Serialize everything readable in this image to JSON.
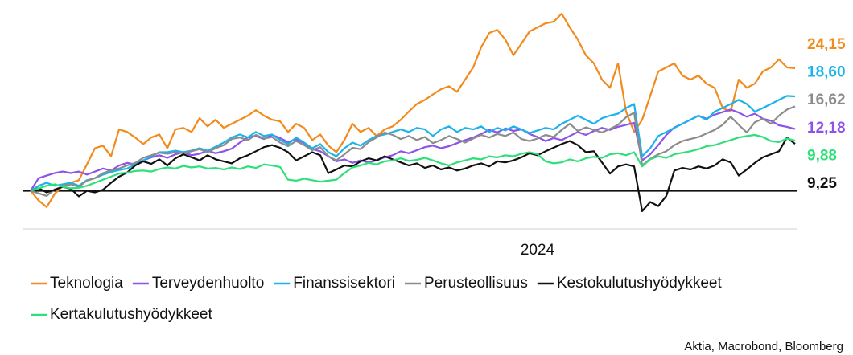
{
  "chart_data": {
    "type": "line",
    "source": "Aktia, Macrobond, Bloomberg",
    "categories": [
      null,
      null,
      null,
      null,
      null,
      null,
      null,
      null,
      null,
      null,
      null,
      null,
      null,
      null,
      null,
      null,
      null,
      null,
      null,
      null,
      null,
      null,
      null,
      null,
      null,
      null,
      null,
      null,
      null,
      null,
      null,
      null,
      null,
      null,
      null,
      null,
      null,
      null,
      null,
      null,
      null,
      null,
      null,
      null,
      null,
      null,
      null,
      null,
      null,
      null,
      null,
      null,
      null,
      null,
      null,
      null,
      null,
      null,
      null,
      null,
      null,
      null,
      null,
      "2024",
      null,
      null,
      null,
      null,
      null,
      null,
      null,
      null,
      null,
      null,
      null,
      null,
      null,
      null,
      null,
      null,
      null,
      null,
      null,
      null,
      null,
      null,
      null,
      null,
      null,
      null,
      null,
      null,
      null,
      null,
      null,
      null
    ],
    "ylim": [
      -7.5,
      36
    ],
    "series": [
      {
        "name": "Teknologia",
        "color": "#f28a1c",
        "value_label": "24,15",
        "values": [
          0,
          -1.9,
          -3.2,
          -0.6,
          1.0,
          1.6,
          2.1,
          5.2,
          8.4,
          8.9,
          6.8,
          12.1,
          11.6,
          10.5,
          9.2,
          10.5,
          11.1,
          8.4,
          12.1,
          12.4,
          11.6,
          14.3,
          12.7,
          14.0,
          12.4,
          13.2,
          14.0,
          14.8,
          15.9,
          14.8,
          14.0,
          13.7,
          11.6,
          13.2,
          12.4,
          10.0,
          11.1,
          8.9,
          7.6,
          10.0,
          13.2,
          11.6,
          12.4,
          10.8,
          12.1,
          12.7,
          14.0,
          15.6,
          17.1,
          17.9,
          19.0,
          20.0,
          20.6,
          19.5,
          21.9,
          24.3,
          28.3,
          31.1,
          31.7,
          29.8,
          26.7,
          29.0,
          31.4,
          32.2,
          33.0,
          33.3,
          34.9,
          32.2,
          29.8,
          26.7,
          25.1,
          21.9,
          20.3,
          25.1,
          15.6,
          11.6,
          14.0,
          18.7,
          23.5,
          24.3,
          25.1,
          22.7,
          21.9,
          22.7,
          21.1,
          20.3,
          16.3,
          15.6,
          21.9,
          20.3,
          21.1,
          23.5,
          24.3,
          25.9,
          24.3,
          24.15
        ]
      },
      {
        "name": "Terveydenhuolto",
        "color": "#8c52ea",
        "value_label": "12,18",
        "values": [
          0,
          2.5,
          3.0,
          3.5,
          3.8,
          3.5,
          3.8,
          3.2,
          3.8,
          4.4,
          4.0,
          5.0,
          5.5,
          5.2,
          6.0,
          6.6,
          7.0,
          6.5,
          7.2,
          7.6,
          7.0,
          7.3,
          7.9,
          7.4,
          7.8,
          8.3,
          9.5,
          10.5,
          10.8,
          10.2,
          11.0,
          10.4,
          9.6,
          10.2,
          9.4,
          8.2,
          7.8,
          6.8,
          5.8,
          6.2,
          5.5,
          6.0,
          5.6,
          6.0,
          6.6,
          7.0,
          7.8,
          7.4,
          8.0,
          8.6,
          8.9,
          8.4,
          8.8,
          9.4,
          10.0,
          10.5,
          11.2,
          12.0,
          11.5,
          12.3,
          11.8,
          12.1,
          11.2,
          10.6,
          9.8,
          10.4,
          10.0,
          10.8,
          11.6,
          11.0,
          11.8,
          12.4,
          12.0,
          12.6,
          13.0,
          13.4,
          6.0,
          7.2,
          9.0,
          11.0,
          12.5,
          13.2,
          14.0,
          14.8,
          14.2,
          15.0,
          15.5,
          16.0,
          15.4,
          14.6,
          15.2,
          14.2,
          13.8,
          12.9,
          12.6,
          12.18
        ]
      },
      {
        "name": "Finanssisektori",
        "color": "#1ab3ea",
        "value_label": "18,60",
        "values": [
          0,
          1.0,
          1.6,
          1.0,
          1.3,
          1.6,
          1.0,
          2.1,
          2.5,
          3.2,
          3.7,
          4.1,
          4.4,
          5.2,
          6.0,
          6.8,
          7.6,
          7.6,
          7.9,
          7.6,
          7.9,
          8.4,
          7.9,
          8.7,
          9.5,
          10.5,
          11.1,
          10.5,
          11.6,
          10.8,
          11.1,
          10.0,
          9.2,
          10.5,
          9.5,
          8.4,
          9.2,
          7.6,
          6.8,
          8.4,
          9.5,
          8.9,
          10.0,
          10.8,
          11.1,
          11.6,
          12.1,
          11.6,
          12.4,
          12.1,
          10.8,
          12.1,
          12.7,
          11.6,
          12.4,
          12.1,
          12.7,
          11.6,
          12.4,
          11.9,
          12.7,
          12.1,
          11.4,
          11.9,
          12.4,
          12.1,
          13.2,
          14.0,
          14.8,
          14.0,
          13.2,
          14.3,
          14.8,
          15.2,
          16.3,
          17.1,
          6.8,
          8.4,
          10.8,
          11.6,
          12.4,
          13.2,
          14.0,
          14.8,
          14.0,
          15.6,
          16.3,
          17.1,
          17.9,
          17.1,
          15.6,
          16.3,
          17.1,
          17.9,
          18.7,
          18.6
        ]
      },
      {
        "name": "Perusteollisuus",
        "color": "#8c8c8c",
        "value_label": "16,62",
        "values": [
          0,
          -0.5,
          -1.0,
          0.3,
          0.8,
          1.3,
          0.8,
          2.0,
          2.5,
          3.5,
          4.0,
          4.4,
          5.0,
          5.5,
          6.5,
          7.0,
          7.5,
          7.3,
          7.6,
          7.4,
          7.8,
          8.2,
          7.6,
          8.4,
          9.0,
          10.2,
          10.5,
          10.0,
          11.0,
          10.3,
          10.6,
          9.5,
          8.8,
          9.8,
          9.0,
          8.0,
          8.6,
          6.8,
          6.0,
          7.2,
          8.5,
          8.2,
          9.6,
          10.5,
          11.5,
          11.0,
          10.2,
          10.8,
          10.0,
          10.6,
          9.4,
          10.0,
          10.8,
          10.2,
          9.5,
          10.3,
          11.0,
          10.5,
          11.2,
          10.8,
          11.5,
          10.2,
          9.8,
          10.3,
          11.0,
          10.6,
          12.0,
          13.2,
          11.8,
          12.5,
          12.0,
          11.5,
          12.2,
          13.0,
          14.5,
          15.4,
          5.0,
          6.3,
          7.2,
          7.8,
          9.0,
          9.8,
          10.2,
          10.6,
          11.3,
          12.0,
          13.0,
          14.6,
          13.0,
          11.5,
          13.5,
          14.2,
          13.2,
          14.8,
          16.0,
          16.62
        ]
      },
      {
        "name": "Kestokulutushyödykkeet",
        "color": "#111111",
        "value_label": "9,25",
        "values": [
          0,
          0.5,
          -0.3,
          0.2,
          0.8,
          0.4,
          -1.1,
          0.0,
          -0.3,
          0.2,
          1.6,
          2.8,
          3.6,
          5.0,
          5.8,
          5.3,
          6.2,
          5.0,
          6.4,
          7.2,
          6.6,
          6.0,
          7.0,
          6.2,
          5.8,
          5.4,
          6.4,
          7.0,
          7.8,
          8.6,
          9.0,
          8.5,
          7.6,
          6.0,
          6.8,
          7.6,
          7.0,
          3.5,
          4.2,
          5.0,
          4.8,
          5.8,
          6.4,
          6.0,
          6.8,
          6.2,
          5.6,
          5.0,
          5.4,
          4.5,
          5.0,
          4.2,
          4.6,
          4.0,
          4.4,
          5.0,
          5.4,
          4.8,
          5.8,
          5.6,
          6.0,
          6.6,
          7.4,
          7.0,
          7.8,
          8.5,
          9.2,
          9.8,
          9.0,
          7.6,
          7.8,
          5.6,
          3.4,
          4.8,
          5.2,
          4.8,
          -4.0,
          -2.2,
          -3.0,
          -1.0,
          4.0,
          4.5,
          4.2,
          4.8,
          4.4,
          5.0,
          6.2,
          5.6,
          3.0,
          4.2,
          5.5,
          6.6,
          7.2,
          7.8,
          10.5,
          9.25
        ]
      },
      {
        "name": "Kertakulutushyödykkeet",
        "color": "#2ee07a",
        "value_label": "9,88",
        "values": [
          0,
          0.5,
          1.0,
          1.3,
          0.8,
          0.5,
          0.6,
          1.0,
          1.6,
          2.2,
          2.8,
          3.4,
          3.6,
          3.9,
          4.0,
          3.8,
          4.3,
          4.6,
          4.4,
          4.9,
          4.6,
          4.8,
          4.4,
          4.5,
          4.2,
          4.6,
          4.3,
          4.8,
          4.5,
          5.2,
          5.0,
          4.7,
          2.2,
          2.0,
          2.4,
          2.1,
          1.8,
          2.0,
          2.2,
          3.5,
          4.6,
          5.0,
          5.5,
          5.2,
          5.8,
          6.0,
          6.4,
          5.9,
          6.1,
          6.5,
          6.0,
          5.4,
          5.0,
          5.6,
          6.0,
          6.4,
          6.2,
          6.8,
          6.6,
          7.0,
          6.8,
          7.3,
          7.6,
          7.2,
          5.8,
          5.4,
          5.6,
          6.2,
          5.8,
          6.4,
          6.7,
          6.5,
          7.2,
          7.4,
          7.0,
          7.6,
          4.8,
          6.2,
          6.8,
          6.5,
          7.2,
          7.5,
          7.8,
          8.2,
          8.8,
          9.0,
          9.5,
          10.0,
          10.5,
          10.8,
          11.0,
          10.6,
          9.8,
          9.6,
          10.3,
          9.88
        ]
      }
    ]
  }
}
